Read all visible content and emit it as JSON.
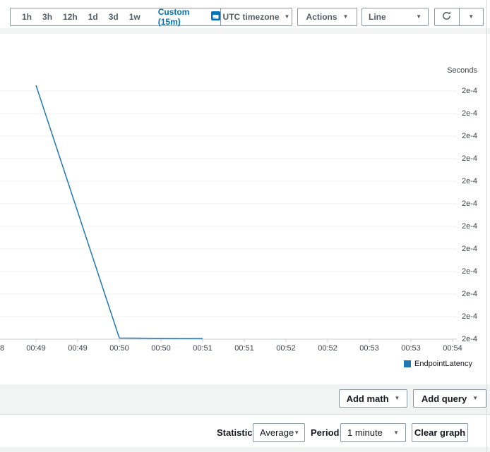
{
  "icons": {
    "caret": "▼"
  },
  "colors": {
    "accent_blue": "#0073bb",
    "series_blue": "#1f77b4",
    "band_gray": "#f2f3f3"
  },
  "toolbar": {
    "time_ranges": [
      "1h",
      "3h",
      "12h",
      "1d",
      "3d",
      "1w"
    ],
    "custom_range": "Custom (15m)",
    "timezone": "UTC timezone",
    "actions": "Actions",
    "chart_type": "Line"
  },
  "chart_data": {
    "type": "line",
    "title": "",
    "y_axis_title": "Seconds",
    "y_tick_labels": [
      "2e-4",
      "2e-4",
      "2e-4",
      "2e-4",
      "2e-4",
      "2e-4",
      "2e-4",
      "2e-4",
      "2e-4",
      "2e-4",
      "2e-4",
      "2e-4"
    ],
    "x_tick_labels": [
      "8",
      "00:49",
      "00:49",
      "00:50",
      "00:50",
      "00:51",
      "00:51",
      "00:52",
      "00:52",
      "00:53",
      "00:53",
      "00:54"
    ],
    "ylim": [
      0,
      0.00022
    ],
    "grid": "horizontal",
    "legend_position": "bottom-right",
    "series": [
      {
        "name": "EndpointLatency",
        "color": "#1f77b4",
        "points": [
          {
            "t": "00:49",
            "v": 0.00022
          },
          {
            "t": "00:50",
            "v": 1e-06
          },
          {
            "t": "00:51",
            "v": 5e-07
          }
        ]
      }
    ]
  },
  "footer": {
    "add_math": "Add math",
    "add_query": "Add query"
  },
  "bottom_bar": {
    "statistic_label": "Statistic:",
    "statistic_value": "Average",
    "period_label": "Period:",
    "period_value": "1 minute",
    "clear_graph": "Clear graph"
  }
}
